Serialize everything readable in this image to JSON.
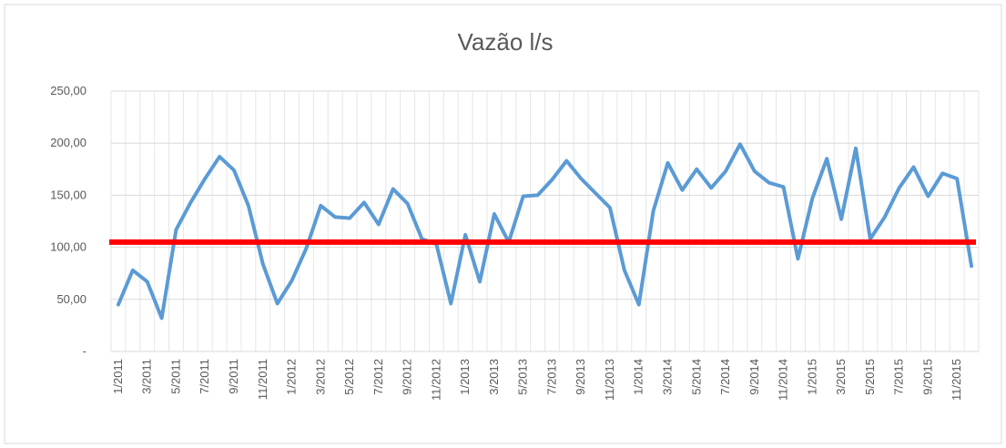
{
  "chart_data": {
    "type": "line",
    "title": "Vazão l/s",
    "categories": [
      "1/2011",
      null,
      "3/2011",
      null,
      "5/2011",
      null,
      "7/2011",
      null,
      "9/2011",
      null,
      "11/2011",
      null,
      "1/2012",
      null,
      "3/2012",
      null,
      "5/2012",
      null,
      "7/2012",
      null,
      "9/2012",
      null,
      "11/2012",
      null,
      "1/2013",
      null,
      "3/2013",
      null,
      "5/2013",
      null,
      "7/2013",
      null,
      "9/2013",
      null,
      "11/2013",
      null,
      "1/2014",
      null,
      "3/2014",
      null,
      "5/2014",
      null,
      "7/2014",
      null,
      "9/2014",
      null,
      "11/2014",
      null,
      "1/2015",
      null,
      "3/2015",
      null,
      "5/2015",
      null,
      "7/2015",
      null,
      "9/2015",
      null,
      "11/2015",
      null
    ],
    "series": [
      {
        "color": "#5b9bd5",
        "values": [
          45,
          78,
          67,
          32,
          117,
          143,
          166,
          187,
          174,
          140,
          84,
          46,
          68,
          99,
          140,
          129,
          128,
          143,
          122,
          156,
          142,
          108,
          103,
          46,
          112,
          67,
          132,
          105,
          149,
          150,
          165,
          183,
          166,
          152,
          138,
          78,
          45,
          135,
          181,
          155,
          175,
          157,
          173,
          199,
          173,
          162,
          158,
          89,
          147,
          185,
          127,
          195,
          108,
          129,
          157,
          177,
          149,
          171,
          166,
          82
        ]
      }
    ],
    "reference_line": {
      "value": 105,
      "color": "#ff0000"
    },
    "ylim": [
      0,
      250
    ],
    "yticks": [
      {
        "value": 0,
        "label": "-"
      },
      {
        "value": 50,
        "label": "50,00"
      },
      {
        "value": 100,
        "label": "100,00"
      },
      {
        "value": 150,
        "label": "150,00"
      },
      {
        "value": 200,
        "label": "200,00"
      },
      {
        "value": 250,
        "label": "250,00"
      }
    ],
    "grid": true
  }
}
